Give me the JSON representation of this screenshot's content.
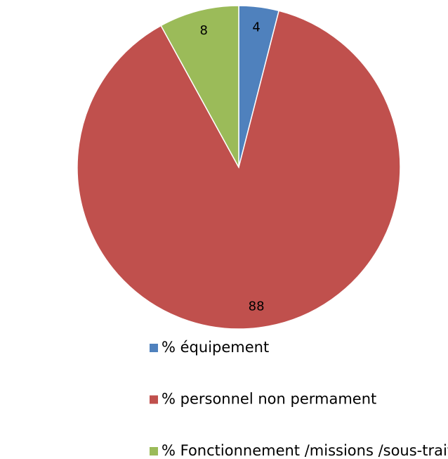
{
  "chart_data": {
    "type": "pie",
    "categories": [
      "% équipement",
      "% personnel non permament",
      "% Fonctionnement /missions /sous-traitance"
    ],
    "values": [
      4,
      88,
      8
    ],
    "colors": [
      "#4f81bd",
      "#c0504d",
      "#9bbb59"
    ],
    "legend": "bottom"
  }
}
